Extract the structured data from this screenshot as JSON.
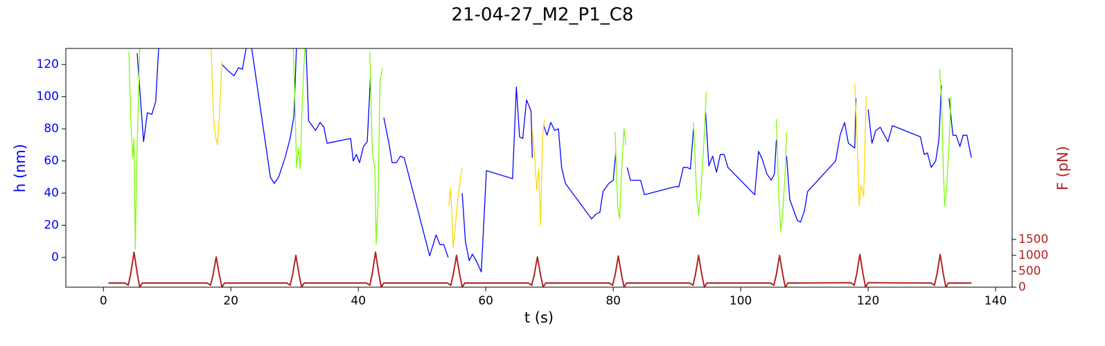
{
  "chart_data": {
    "type": "line",
    "title": "21-04-27_M2_P1_C8",
    "xlabel": "t (s)",
    "ylabel": "h (nm)",
    "y2label": "F (pN)",
    "xlim": [
      -5.9,
      142.6
    ],
    "ylim": [
      -18.5,
      130
    ],
    "y2lim": [
      0,
      7500
    ],
    "xticks": [
      0,
      20,
      40,
      60,
      80,
      100,
      120,
      140
    ],
    "yticks": [
      0,
      20,
      40,
      60,
      80,
      100,
      120
    ],
    "y2ticks": [
      0,
      500,
      1000,
      1500
    ],
    "ycolor": "#0000ff",
    "y2color": "#b22222",
    "series": [
      {
        "color": "#0000ff",
        "x": [
          5.3,
          6.3,
          6.9,
          7.6,
          8.2,
          8.7,
          null,
          18.6,
          19.6,
          20.5,
          21.2,
          21.8,
          22.4,
          23.2,
          26.2,
          26.8,
          27.5,
          28.5,
          29.3,
          29.9,
          30.3,
          null,
          31.8,
          32.2,
          33.3,
          34,
          34.6,
          35.1,
          38.8,
          39.2,
          39.7,
          40.2,
          40.8,
          41.4,
          41.9,
          null,
          44,
          44.8,
          45.3,
          46,
          46.6,
          47.2,
          51.2,
          52.2,
          52.8,
          53.4,
          54.1,
          null,
          56.3,
          56.8,
          57.4,
          57.9,
          58.5,
          59.3,
          60.1,
          64.2,
          64.8,
          65.3,
          65.8,
          66.4,
          67.1,
          67.3,
          null,
          69.1,
          69.6,
          70.2,
          70.8,
          71.4,
          71.9,
          72.5,
          76.6,
          77.3,
          77.9,
          78.4,
          79.3,
          80,
          80.4,
          null,
          82.2,
          82.7,
          83.8,
          84.3,
          84.9,
          89.7,
          90.3,
          91,
          91.6,
          92.1,
          92.6,
          null,
          94.5,
          95,
          95.6,
          96.2,
          96.8,
          97.4,
          98,
          102.2,
          102.8,
          103.4,
          104.1,
          104.8,
          105.3,
          105.6,
          null,
          107.2,
          107.7,
          108.9,
          109.4,
          110,
          110.5,
          114.9,
          115.6,
          116.3,
          116.9,
          117.9,
          118.1,
          null,
          120,
          120.6,
          121.2,
          121.9,
          123.1,
          123.8,
          128.2,
          128.8,
          129.3,
          129.9,
          130.6,
          131.1,
          131.5,
          null,
          132.7,
          133.3,
          133.8,
          134.4,
          134.9,
          135.5,
          136.2
        ],
        "values": [
          127,
          72,
          90,
          89,
          97,
          132,
          null,
          120,
          116,
          113,
          118,
          117,
          130,
          132,
          50,
          46,
          50,
          62,
          74,
          88,
          132,
          null,
          130,
          85,
          79,
          84,
          81,
          71,
          74,
          60,
          64,
          59,
          69,
          72,
          112,
          null,
          87,
          71,
          59,
          59,
          63,
          62,
          1,
          14,
          8,
          8,
          0,
          null,
          40,
          10,
          -2,
          2,
          -2,
          -9,
          54,
          49,
          106,
          75,
          74,
          98,
          91,
          62,
          null,
          82,
          76,
          84,
          79,
          80,
          56,
          46,
          24,
          27,
          28,
          41,
          46,
          48,
          65,
          null,
          56,
          48,
          48,
          48,
          39,
          44,
          44,
          56,
          56,
          55,
          80,
          null,
          90,
          57,
          63,
          53,
          64,
          64,
          56,
          39,
          66,
          61,
          52,
          48,
          52,
          73,
          null,
          63,
          36,
          23,
          22,
          29,
          41,
          60,
          76,
          84,
          71,
          68,
          99,
          null,
          92,
          71,
          79,
          81,
          72,
          82,
          75,
          64,
          65,
          56,
          60,
          73,
          107,
          null,
          99,
          76,
          76,
          69,
          76,
          76,
          62
        ]
      },
      {
        "color": "#7cfc00",
        "x": [
          4,
          4.3,
          4.6,
          4.8,
          5,
          5.2,
          5.5,
          5.7,
          null,
          29.8,
          30.1,
          30.3,
          30.6,
          30.9,
          31.2,
          31.6,
          null,
          41.8,
          42.2,
          42.6,
          42.8,
          43.1,
          43.4,
          43.8,
          null,
          80.3,
          80.7,
          81,
          81.3,
          81.7,
          82,
          null,
          92.6,
          93.1,
          93.4,
          93.8,
          94.2,
          94.6,
          null,
          105.6,
          106,
          106.3,
          106.6,
          107,
          107.2,
          null,
          131.2,
          131.5,
          131.8,
          132,
          132.3,
          132.7,
          133
        ],
        "values": [
          128,
          85,
          62,
          74,
          5,
          55,
          100,
          130,
          null,
          130,
          90,
          56,
          68,
          55,
          98,
          130,
          null,
          128,
          65,
          55,
          8,
          35,
          110,
          118,
          null,
          78,
          32,
          24,
          53,
          80,
          70,
          null,
          84,
          38,
          26,
          44,
          70,
          103,
          null,
          86,
          36,
          16,
          28,
          55,
          78,
          null,
          117,
          100,
          55,
          32,
          42,
          70,
          100
        ]
      },
      {
        "color": "#ffd700",
        "x": [
          16.9,
          17.3,
          17.6,
          17.9,
          18.2,
          18.6,
          null,
          54.2,
          54.5,
          54.9,
          55.2,
          55.6,
          56,
          56.3,
          null,
          67.3,
          67.7,
          68,
          68.3,
          68.6,
          68.9,
          69.2,
          null,
          117.9,
          118.3,
          118.6,
          118.9,
          119.3,
          119.7
        ],
        "values": [
          130,
          85,
          75,
          70,
          88,
          122,
          null,
          32,
          43,
          6,
          18,
          36,
          48,
          56,
          null,
          79,
          60,
          42,
          55,
          20,
          74,
          86,
          null,
          108,
          70,
          32,
          45,
          38,
          100
        ]
      },
      {
        "color": "#b22222",
        "axis": "y2",
        "x": [
          0.8,
          3,
          3.4,
          3.9,
          4.3,
          4.8,
          5.3,
          5.7,
          6.1,
          16.3,
          16.8,
          17.2,
          17.7,
          18.2,
          18.6,
          19,
          28.8,
          29.3,
          29.7,
          30.2,
          30.7,
          31.1,
          31.5,
          41.3,
          41.8,
          42.2,
          42.7,
          43.2,
          43.6,
          44,
          54,
          54.5,
          54.9,
          55.4,
          55.9,
          56.3,
          56.7,
          66.7,
          67.2,
          67.6,
          68.1,
          68.6,
          69,
          69.4,
          79.4,
          79.9,
          80.3,
          80.8,
          81.3,
          81.7,
          82.1,
          92,
          92.5,
          92.9,
          93.4,
          93.9,
          94.3,
          94.7,
          104.7,
          105.2,
          105.6,
          106.1,
          106.6,
          107,
          107.4,
          117.3,
          117.8,
          118.2,
          118.7,
          119.2,
          119.6,
          120,
          129.9,
          130.4,
          130.8,
          131.3,
          131.8,
          132.2,
          132.6,
          136.2
        ],
        "values": [
          130,
          130,
          130,
          60,
          440,
          1100,
          440,
          0,
          130,
          130,
          60,
          380,
          950,
          380,
          0,
          130,
          130,
          60,
          400,
          1000,
          400,
          0,
          130,
          130,
          60,
          440,
          1100,
          440,
          0,
          130,
          130,
          60,
          400,
          1000,
          400,
          0,
          130,
          130,
          60,
          380,
          950,
          380,
          0,
          130,
          130,
          60,
          390,
          980,
          390,
          0,
          130,
          130,
          60,
          400,
          1000,
          400,
          0,
          130,
          130,
          60,
          400,
          1000,
          400,
          0,
          130,
          140,
          60,
          410,
          1030,
          410,
          0,
          140,
          130,
          60,
          410,
          1030,
          410,
          0,
          130,
          130
        ]
      }
    ]
  }
}
